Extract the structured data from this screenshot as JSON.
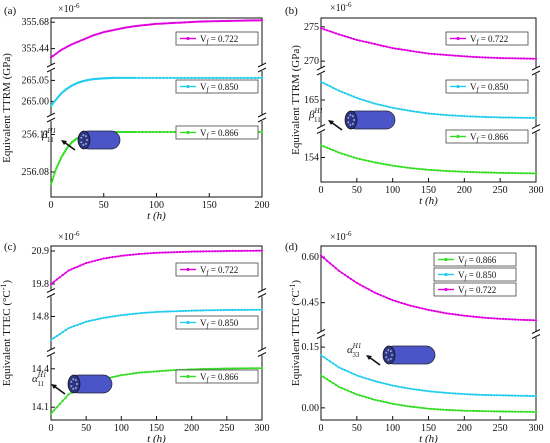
{
  "chart_data": [
    {
      "type": "line",
      "panel_label": "(a)",
      "xlabel": "t (h)",
      "ylabel": "Equivalent TTRM  (GPa)",
      "y_exponent": "×10",
      "y_exponent_sup": "-6",
      "xlim": [
        0,
        200
      ],
      "x_ticks": [
        "0",
        "50",
        "100",
        "150",
        "200"
      ],
      "inset_label": "β",
      "inset_sup": "H1",
      "inset_sub": "11",
      "segments": [
        {
          "ticks": [
            "355.44",
            "355.68"
          ],
          "tick_values": [
            355.44,
            355.68
          ],
          "ylim": [
            355.3,
            355.7
          ]
        },
        {
          "ticks": [
            "265.00",
            "265.05"
          ],
          "tick_values": [
            265.0,
            265.05
          ],
          "ylim": [
            264.97,
            265.07
          ]
        },
        {
          "ticks": [
            "256.08",
            "256.11"
          ],
          "tick_values": [
            256.08,
            256.11
          ],
          "ylim": [
            256.06,
            256.12
          ]
        }
      ],
      "series": [
        {
          "name": "V",
          "name_sub": "f",
          "name_value": " = 0.722",
          "color": "#e000e0",
          "segment": 0,
          "x": [
            0,
            10,
            20,
            30,
            40,
            50,
            60,
            70,
            80,
            90,
            100,
            110,
            120,
            130,
            140,
            150,
            160,
            170,
            180,
            190,
            200
          ],
          "values": [
            355.36,
            355.43,
            355.48,
            355.52,
            355.56,
            355.59,
            355.61,
            355.63,
            355.645,
            355.655,
            355.665,
            355.67,
            355.675,
            355.68,
            355.685,
            355.688,
            355.69,
            355.692,
            355.694,
            355.696,
            355.697
          ]
        },
        {
          "name": "V",
          "name_sub": "f",
          "name_value": " = 0.850",
          "color": "#22ccee",
          "segment": 1,
          "x": [
            0,
            5,
            10,
            15,
            20,
            25,
            30,
            35,
            40,
            45,
            50,
            55,
            60,
            70,
            80,
            100,
            120,
            140,
            160,
            180,
            200
          ],
          "values": [
            264.99,
            265.005,
            265.02,
            265.03,
            265.038,
            265.044,
            265.048,
            265.051,
            265.053,
            265.054,
            265.055,
            265.0555,
            265.056,
            265.056,
            265.056,
            265.056,
            265.056,
            265.056,
            265.056,
            265.056,
            265.056
          ]
        },
        {
          "name": "V",
          "name_sub": "f",
          "name_value": " = 0.866",
          "color": "#33dd22",
          "segment": 2,
          "x": [
            0,
            5,
            10,
            15,
            20,
            25,
            30,
            35,
            40,
            45,
            50,
            55,
            60,
            70,
            80,
            100,
            120,
            140,
            160,
            180,
            200
          ],
          "values": [
            256.07,
            256.083,
            256.092,
            256.099,
            256.104,
            256.107,
            256.109,
            256.1103,
            256.111,
            256.1113,
            256.1115,
            256.1117,
            256.112,
            256.112,
            256.112,
            256.112,
            256.112,
            256.112,
            256.112,
            256.112,
            256.112
          ]
        }
      ]
    },
    {
      "type": "line",
      "panel_label": "(b)",
      "xlabel": "t (h)",
      "ylabel": "Equivalent TTRM  (GPa)",
      "y_exponent": "×10",
      "y_exponent_sup": "-6",
      "xlim": [
        0,
        300
      ],
      "x_ticks": [
        "0",
        "50",
        "100",
        "150",
        "200",
        "250",
        "300"
      ],
      "inset_label": "β",
      "inset_sup": "H1",
      "inset_sub": "11",
      "segments": [
        {
          "ticks": [
            "270",
            "275"
          ],
          "tick_values": [
            270,
            275
          ],
          "ylim": [
            269,
            276
          ]
        },
        {
          "ticks": [
            "165"
          ],
          "tick_values": [
            165
          ],
          "ylim": [
            160,
            170
          ]
        },
        {
          "ticks": [
            "154"
          ],
          "tick_values": [
            154
          ],
          "ylim": [
            151,
            157
          ]
        }
      ],
      "series": [
        {
          "name": "V",
          "name_sub": "f",
          "name_value": " = 0.722",
          "color": "#e000e0",
          "segment": 0,
          "x": [
            0,
            25,
            50,
            75,
            100,
            125,
            150,
            175,
            200,
            225,
            250,
            275,
            300
          ],
          "values": [
            274.8,
            273.9,
            273.1,
            272.5,
            271.9,
            271.5,
            271.1,
            270.9,
            270.7,
            270.55,
            270.45,
            270.4,
            270.35
          ]
        },
        {
          "name": "V",
          "name_sub": "f",
          "name_value": " = 0.850",
          "color": "#22ccee",
          "segment": 1,
          "x": [
            0,
            25,
            50,
            75,
            100,
            125,
            150,
            175,
            200,
            225,
            250,
            275,
            300
          ],
          "values": [
            168.5,
            166.8,
            165.4,
            164.3,
            163.5,
            162.9,
            162.4,
            162.1,
            161.9,
            161.75,
            161.65,
            161.6,
            161.55
          ]
        },
        {
          "name": "V",
          "name_sub": "f",
          "name_value": " = 0.866",
          "color": "#33dd22",
          "segment": 2,
          "x": [
            0,
            25,
            50,
            75,
            100,
            125,
            150,
            175,
            200,
            225,
            250,
            275,
            300
          ],
          "values": [
            155.5,
            154.6,
            153.9,
            153.4,
            153.0,
            152.7,
            152.5,
            152.35,
            152.25,
            152.18,
            152.12,
            152.08,
            152.05
          ]
        }
      ]
    },
    {
      "type": "line",
      "panel_label": "(c)",
      "xlabel": "t (h)",
      "ylabel": "Equivalent TTEC (°C",
      "ylabel_sup": "-1",
      "ylabel_end": ")",
      "y_exponent": "×10",
      "y_exponent_sup": "-6",
      "xlim": [
        0,
        300
      ],
      "x_ticks": [
        "0",
        "50",
        "100",
        "150",
        "200",
        "250",
        "300"
      ],
      "inset_label": "α",
      "inset_sup": "H1",
      "inset_sub": "11",
      "segments": [
        {
          "ticks": [
            "19.8",
            "20.9"
          ],
          "tick_values": [
            19.8,
            20.9
          ],
          "ylim": [
            19.6,
            21.0
          ]
        },
        {
          "ticks": [
            "14.8"
          ],
          "tick_values": [
            14.8
          ],
          "ylim": [
            14.55,
            14.95
          ]
        },
        {
          "ticks": [
            "14.1",
            "14.4"
          ],
          "tick_values": [
            14.1,
            14.4
          ],
          "ylim": [
            14.0,
            14.5
          ]
        }
      ],
      "series": [
        {
          "name": "V",
          "name_sub": "f",
          "name_value": " = 0.722",
          "color": "#e000e0",
          "segment": 0,
          "x": [
            0,
            25,
            50,
            75,
            100,
            125,
            150,
            175,
            200,
            225,
            250,
            275,
            300
          ],
          "values": [
            19.8,
            20.25,
            20.5,
            20.65,
            20.74,
            20.8,
            20.84,
            20.86,
            20.88,
            20.89,
            20.9,
            20.905,
            20.91
          ]
        },
        {
          "name": "V",
          "name_sub": "f",
          "name_value": " = 0.850",
          "color": "#22ccee",
          "segment": 1,
          "x": [
            0,
            25,
            50,
            75,
            100,
            125,
            150,
            175,
            200,
            225,
            250,
            275,
            300
          ],
          "values": [
            14.62,
            14.71,
            14.76,
            14.79,
            14.81,
            14.825,
            14.835,
            14.84,
            14.845,
            14.848,
            14.85,
            14.851,
            14.852
          ]
        },
        {
          "name": "V",
          "name_sub": "f",
          "name_value": " = 0.866",
          "color": "#33dd22",
          "segment": 2,
          "x": [
            0,
            25,
            50,
            75,
            100,
            125,
            150,
            175,
            200,
            225,
            250,
            275,
            300
          ],
          "values": [
            14.05,
            14.2,
            14.28,
            14.32,
            14.35,
            14.37,
            14.38,
            14.39,
            14.395,
            14.4,
            14.402,
            14.404,
            14.405
          ]
        }
      ]
    },
    {
      "type": "line",
      "panel_label": "(d)",
      "xlabel": "t (h)",
      "ylabel": "Equivalent TTEC (°C",
      "ylabel_sup": "-1",
      "ylabel_end": ")",
      "y_exponent": "×10",
      "y_exponent_sup": "-6",
      "xlim": [
        0,
        300
      ],
      "x_ticks": [
        "0",
        "50",
        "100",
        "150",
        "200",
        "250",
        "300"
      ],
      "inset_label": "α",
      "inset_sup": "H1",
      "inset_sub": "33",
      "segments": [
        {
          "ticks": [
            "0.45",
            "0.60"
          ],
          "tick_values": [
            0.45,
            0.6
          ],
          "ylim": [
            0.36,
            0.63
          ]
        },
        {
          "ticks": [
            "0.00",
            "0.15"
          ],
          "tick_values": [
            0.0,
            0.15
          ],
          "ylim": [
            -0.03,
            0.17
          ]
        }
      ],
      "series": [
        {
          "name": "V",
          "name_sub": "f",
          "name_value": " = 0.866",
          "color": "#33dd22",
          "segment": 1,
          "x": [
            0,
            25,
            50,
            75,
            100,
            125,
            150,
            175,
            200,
            225,
            250,
            275,
            300
          ],
          "values": [
            0.08,
            0.052,
            0.033,
            0.02,
            0.01,
            0.003,
            -0.002,
            -0.005,
            -0.007,
            -0.008,
            -0.009,
            -0.0095,
            -0.01
          ]
        },
        {
          "name": "V",
          "name_sub": "f",
          "name_value": " = 0.850",
          "color": "#22ccee",
          "segment": 1,
          "x": [
            0,
            25,
            50,
            75,
            100,
            125,
            150,
            175,
            200,
            225,
            250,
            275,
            300
          ],
          "values": [
            0.13,
            0.1,
            0.08,
            0.066,
            0.055,
            0.047,
            0.041,
            0.037,
            0.034,
            0.032,
            0.031,
            0.03,
            0.029
          ]
        },
        {
          "name": "V",
          "name_sub": "f",
          "name_value": " = 0.722",
          "color": "#e000e0",
          "segment": 0,
          "x": [
            0,
            25,
            50,
            75,
            100,
            125,
            150,
            175,
            200,
            225,
            250,
            275,
            300
          ],
          "values": [
            0.605,
            0.555,
            0.515,
            0.483,
            0.458,
            0.44,
            0.426,
            0.415,
            0.407,
            0.401,
            0.397,
            0.394,
            0.392
          ]
        }
      ]
    }
  ]
}
